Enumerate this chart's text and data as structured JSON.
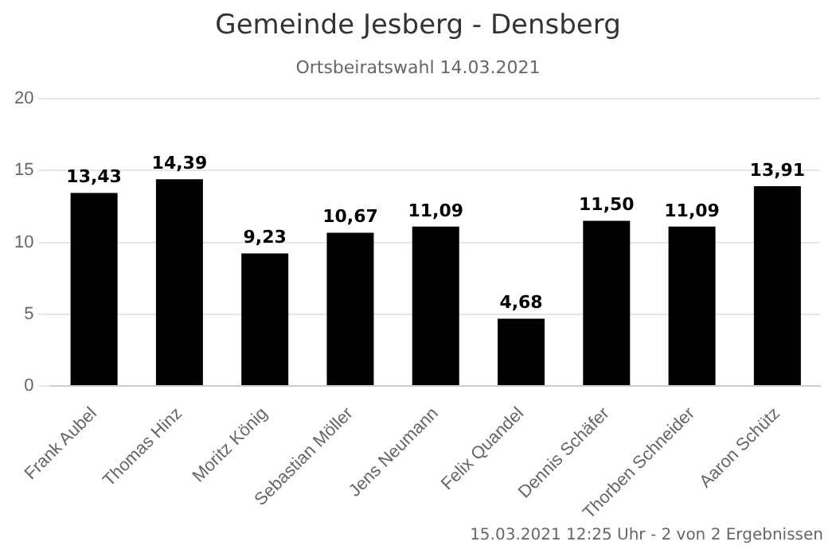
{
  "chart_data": {
    "type": "bar",
    "title": "Gemeinde Jesberg - Densberg",
    "subtitle": "Ortsbeiratswahl 14.03.2021",
    "categories": [
      "Frank Aubel",
      "Thomas Hinz",
      "Moritz König",
      "Sebastian Möller",
      "Jens Neumann",
      "Felix Quandel",
      "Dennis Schäfer",
      "Thorben Schneider",
      "Aaron Schütz"
    ],
    "values": [
      13.43,
      14.39,
      9.23,
      10.67,
      11.09,
      4.68,
      11.5,
      11.09,
      13.91
    ],
    "value_labels": [
      "13,43",
      "14,39",
      "9,23",
      "10,67",
      "11,09",
      "4,68",
      "11,50",
      "11,09",
      "13,91"
    ],
    "color": "#000000",
    "ylim": [
      0,
      20
    ],
    "yticks": [
      0,
      5,
      10,
      15,
      20
    ],
    "grid": "y",
    "annotations": [
      "15.03.2021 12:25 Uhr - 2 von 2 Ergebnissen"
    ]
  }
}
